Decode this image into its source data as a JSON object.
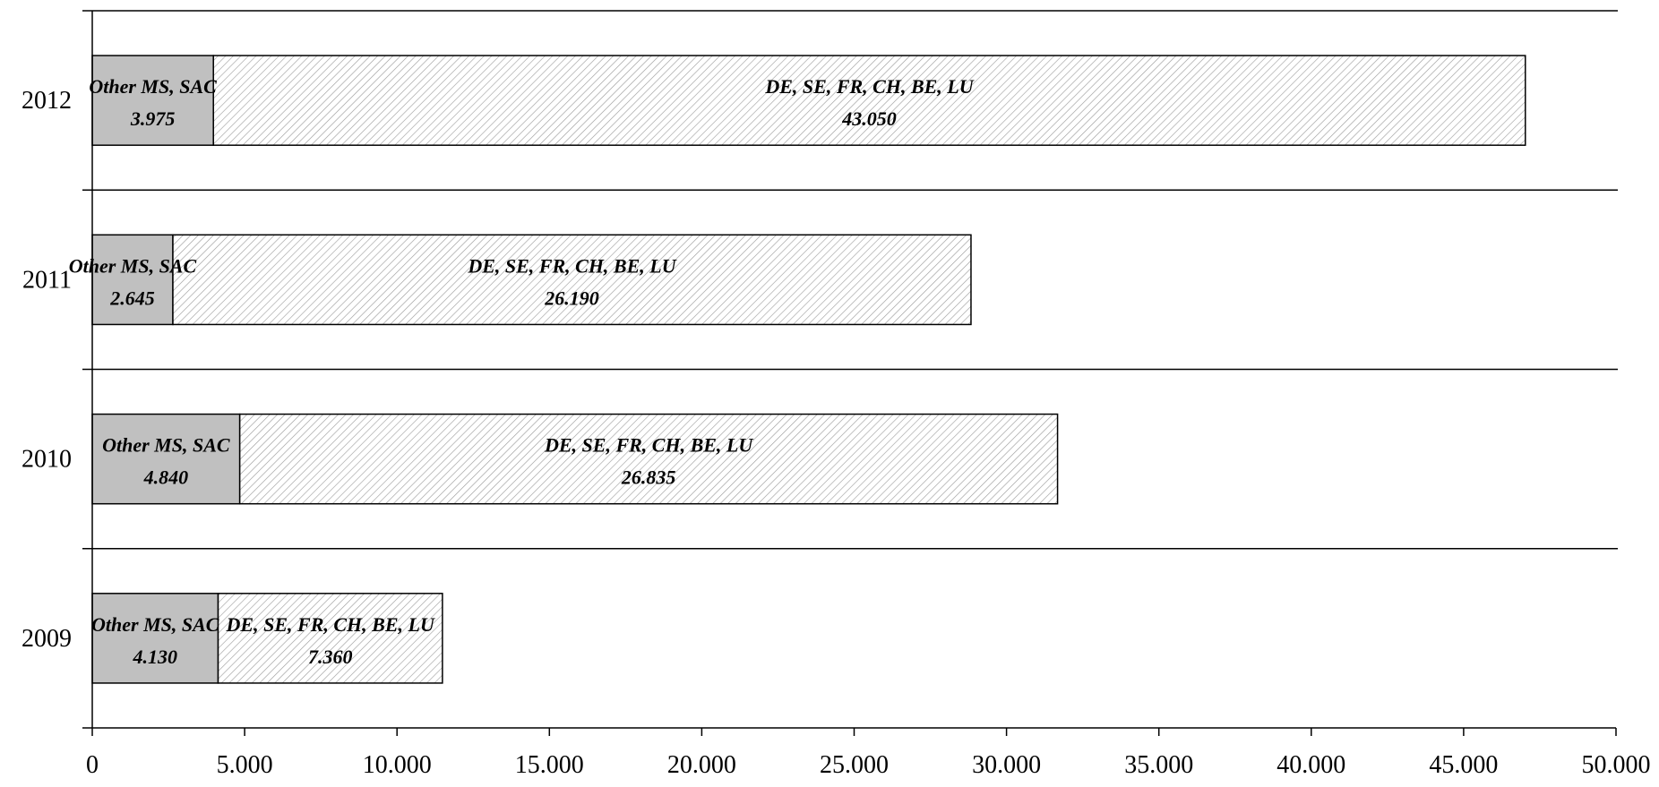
{
  "chart_data": {
    "type": "bar",
    "orientation": "horizontal",
    "stacked": true,
    "categories": [
      "2012",
      "2011",
      "2010",
      "2009"
    ],
    "series": [
      {
        "name": "Other MS, SAC",
        "values": [
          3975,
          2645,
          4840,
          4130
        ],
        "value_labels": [
          "3.975",
          "2.645",
          "4.840",
          "4.130"
        ],
        "color": "#c0c0c0",
        "pattern": "solid"
      },
      {
        "name": "DE, SE, FR, CH, BE, LU",
        "values": [
          43050,
          26190,
          26835,
          7360
        ],
        "value_labels": [
          "43.050",
          "26.190",
          "26.835",
          "7.360"
        ],
        "color": "#ffffff",
        "pattern": "diagonal-hatch"
      }
    ],
    "xlim": [
      0,
      50000
    ],
    "x_ticks": [
      0,
      5000,
      10000,
      15000,
      20000,
      25000,
      30000,
      35000,
      40000,
      45000,
      50000
    ],
    "x_tick_labels": [
      "0",
      "5.000",
      "10.000",
      "15.000",
      "20.000",
      "25.000",
      "30.000",
      "35.000",
      "40.000",
      "45.000",
      "50.000"
    ],
    "gridlines": "horizontal separators between categories",
    "legend": "none (labels inside bars)"
  }
}
